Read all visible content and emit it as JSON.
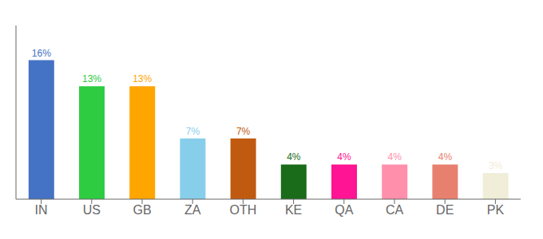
{
  "chart_data": {
    "type": "bar",
    "categories": [
      "IN",
      "US",
      "GB",
      "ZA",
      "OTH",
      "KE",
      "QA",
      "CA",
      "DE",
      "PK"
    ],
    "values": [
      16,
      13,
      13,
      7,
      7,
      4,
      4,
      4,
      4,
      3
    ],
    "value_labels": [
      "16%",
      "13%",
      "13%",
      "7%",
      "7%",
      "4%",
      "4%",
      "4%",
      "4%",
      "3%"
    ],
    "colors": [
      "#4472C4",
      "#2ECC40",
      "#FFA500",
      "#87CEEB",
      "#C05A10",
      "#1A6B1A",
      "#FF1493",
      "#FF8FAB",
      "#E88070",
      "#F0EDD8"
    ],
    "ylim": [
      0,
      20
    ],
    "data_labels": true,
    "tick_labels": "x",
    "grid": false
  }
}
